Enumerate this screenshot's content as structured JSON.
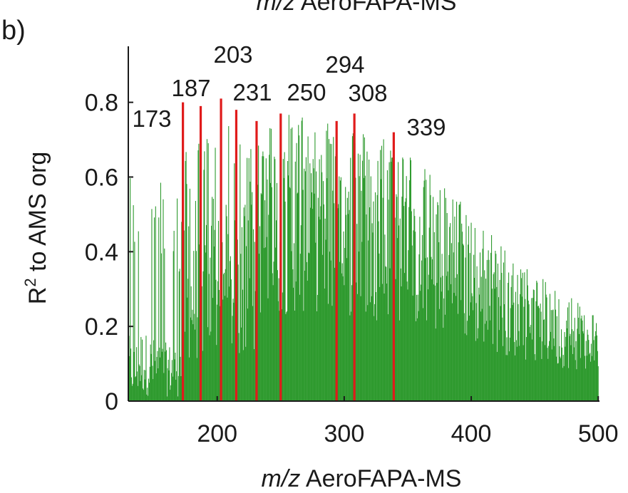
{
  "panel_label": "b)",
  "top_title": {
    "italic": "m/z",
    "rest": " AeroFAPA-MS"
  },
  "chart_data": {
    "type": "bar",
    "xlabel": {
      "italic": "m/z",
      "rest": " AeroFAPA-MS"
    },
    "ylabel": {
      "base": "R",
      "sup": "2",
      "rest": " to AMS org"
    },
    "xlim": [
      130,
      501
    ],
    "ylim": [
      0,
      0.95
    ],
    "xticks": [
      200,
      300,
      400,
      500
    ],
    "yticks": [
      0,
      0.2,
      0.4,
      0.6,
      0.8
    ],
    "ytick_labels": [
      "0",
      "0.2",
      "0.4",
      "0.6",
      "0.8"
    ],
    "grid": false,
    "colors": {
      "bars": "#2e9a2e",
      "highlight": "#e01b1b",
      "text": "#1a1a1a"
    },
    "highlighted_peaks": [
      {
        "mz": 173,
        "r2": 0.8,
        "label": "173"
      },
      {
        "mz": 187,
        "r2": 0.79,
        "label": "187"
      },
      {
        "mz": 203,
        "r2": 0.81,
        "label": "203"
      },
      {
        "mz": 215,
        "r2": 0.78,
        "label": ""
      },
      {
        "mz": 231,
        "r2": 0.75,
        "label": "231"
      },
      {
        "mz": 250,
        "r2": 0.77,
        "label": "250"
      },
      {
        "mz": 294,
        "r2": 0.75,
        "label": "294"
      },
      {
        "mz": 308,
        "r2": 0.77,
        "label": "308"
      },
      {
        "mz": 339,
        "r2": 0.72,
        "label": "339"
      }
    ],
    "envelope": {
      "mz": [
        130,
        135,
        140,
        150,
        160,
        170,
        175,
        185,
        195,
        205,
        215,
        225,
        240,
        255,
        270,
        285,
        300,
        310,
        320,
        335,
        350,
        370,
        390,
        410,
        430,
        450,
        470,
        490,
        500
      ],
      "max_r2": [
        0.66,
        0.56,
        0.72,
        0.63,
        0.58,
        0.57,
        0.72,
        0.7,
        0.74,
        0.75,
        0.73,
        0.74,
        0.76,
        0.77,
        0.78,
        0.79,
        0.76,
        0.74,
        0.72,
        0.72,
        0.68,
        0.6,
        0.55,
        0.47,
        0.4,
        0.34,
        0.3,
        0.26,
        0.22
      ]
    }
  }
}
